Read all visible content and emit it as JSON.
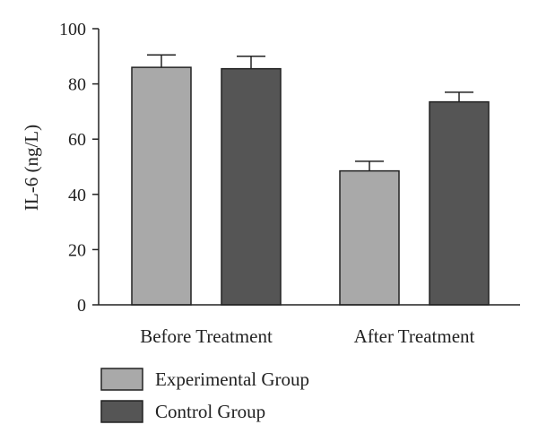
{
  "chart_data": {
    "type": "bar",
    "title": "",
    "xlabel": "",
    "ylabel": "IL-6 (ng/L)",
    "ylim": [
      0,
      100
    ],
    "yticks": [
      0,
      20,
      40,
      60,
      80,
      100
    ],
    "categories": [
      "Before Treatment",
      "After Treatment"
    ],
    "series": [
      {
        "name": "Experimental Group",
        "values": [
          86,
          48.5
        ],
        "errors": [
          4.5,
          3.5
        ],
        "color": "#a9a9a9"
      },
      {
        "name": "Control Group",
        "values": [
          85.5,
          73.5
        ],
        "errors": [
          4.5,
          3.5
        ],
        "color": "#555555"
      }
    ],
    "legend_position": "bottom-left",
    "grid": false
  }
}
